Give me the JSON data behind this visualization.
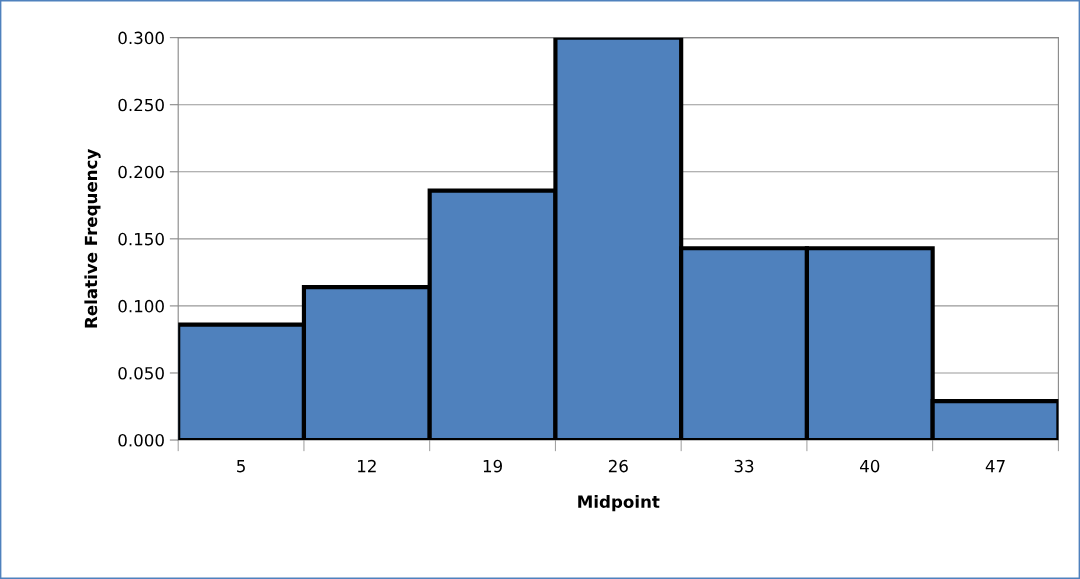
{
  "chart_data": {
    "type": "bar",
    "xlabel": "Midpoint",
    "ylabel": "Relative Frequency",
    "categories": [
      "5",
      "12",
      "19",
      "26",
      "33",
      "40",
      "47"
    ],
    "values": [
      0.086,
      0.114,
      0.186,
      0.3,
      0.143,
      0.143,
      0.029
    ],
    "color": "#4f81bd",
    "ylim": [
      0,
      0.3
    ],
    "yticks": [
      {
        "value": 0,
        "label": "0.000"
      },
      {
        "value": 0.05,
        "label": "0.050"
      },
      {
        "value": 0.1,
        "label": "0.100"
      },
      {
        "value": 0.15,
        "label": "0.150"
      },
      {
        "value": 0.2,
        "label": "0.200"
      },
      {
        "value": 0.25,
        "label": "0.250"
      },
      {
        "value": 0.3,
        "label": "0.300"
      }
    ],
    "grid": "y"
  }
}
